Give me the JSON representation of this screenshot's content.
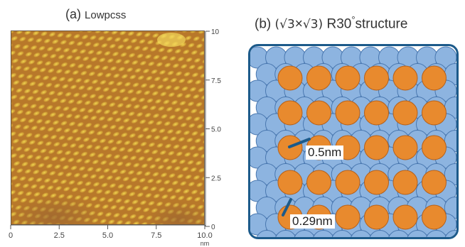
{
  "panel_a": {
    "letter": "(a)",
    "title": "Lowpcss",
    "x_ticks": [
      "0",
      "2.5",
      "5.0",
      "7.5",
      "10.0"
    ],
    "x_unit": "nm",
    "y_ticks": [
      "10",
      "7.5",
      "5.0",
      "2.5",
      "0"
    ]
  },
  "panel_b": {
    "letter": "(b)",
    "radical_left": "(√3",
    "times": "×",
    "radical_right": "√3)",
    "rotation": "R30",
    "degree": "°",
    "title_rest": "structure",
    "label_large": "0.5nm",
    "label_small": "0.29nm"
  },
  "colors": {
    "substrate_atom": "#8db4e0",
    "adatom": "#e88a2e",
    "frame": "#1c5a8a",
    "stm_base": "#b8782a",
    "stm_spot": "#e6c646"
  }
}
